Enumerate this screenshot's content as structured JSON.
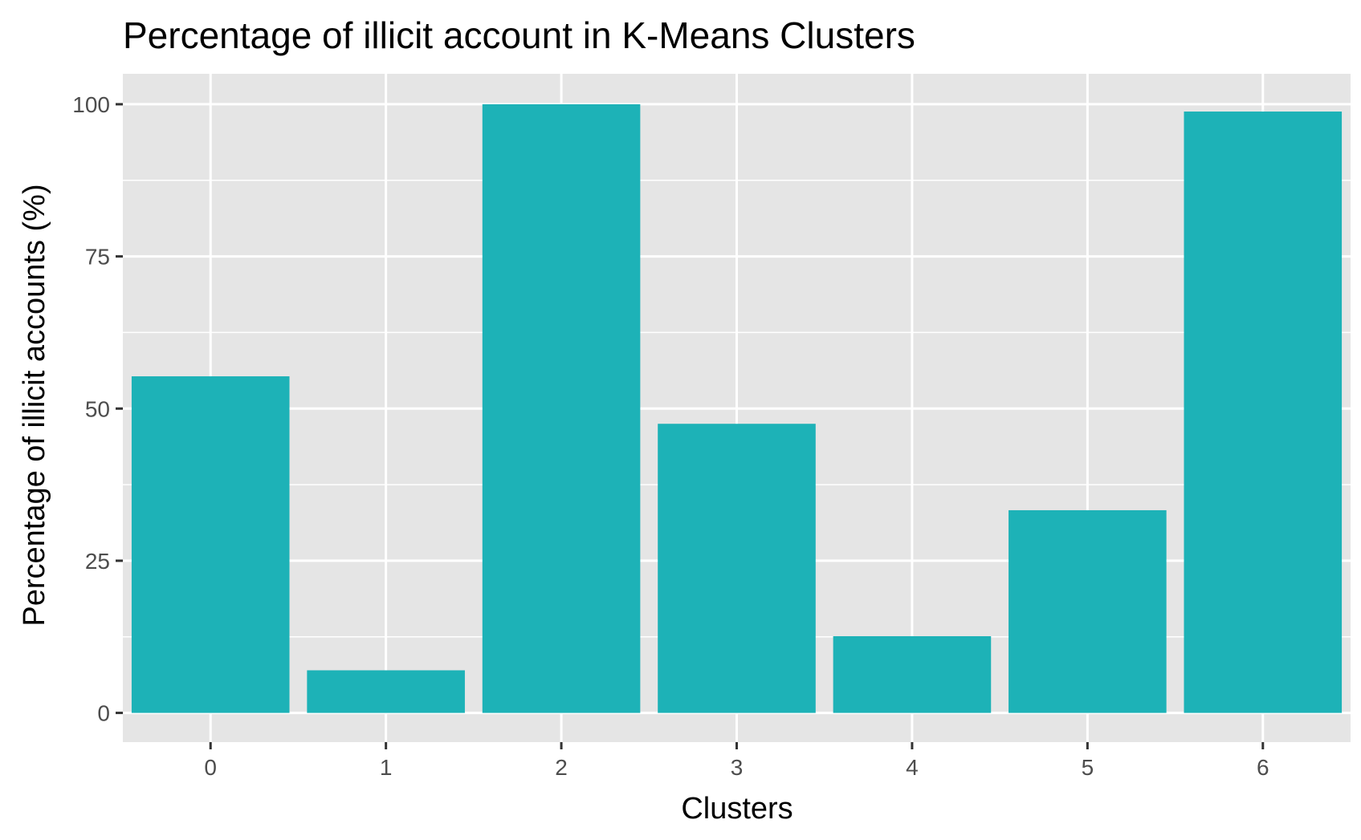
{
  "chart_data": {
    "type": "bar",
    "title": "Percentage of illicit account in K-Means Clusters",
    "xlabel": "Clusters",
    "ylabel": "Percentage of illicit accounts (%)",
    "categories": [
      "0",
      "1",
      "2",
      "3",
      "4",
      "5",
      "6"
    ],
    "values": [
      55.3,
      7.0,
      100.0,
      47.5,
      12.6,
      33.3,
      98.8
    ],
    "ylim": [
      -4.8,
      105
    ],
    "yticks": [
      "0",
      "25",
      "50",
      "75",
      "100"
    ],
    "grid": true,
    "legend": "none",
    "colors": {
      "bar": "#1DB2B7",
      "panel": "#E5E5E5",
      "grid": "#FFFFFF",
      "tick": "#333333"
    }
  }
}
